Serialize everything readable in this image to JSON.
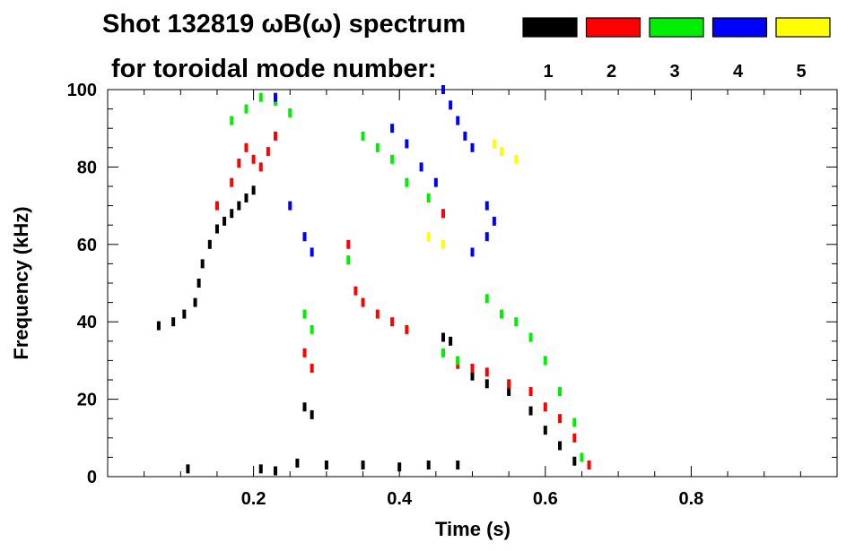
{
  "chart_data": {
    "type": "scatter",
    "title": "Shot 132819 ωB(ω) spectrum",
    "subtitle": "for toroidal mode number:",
    "xlabel": "Time (s)",
    "ylabel": "Frequency (kHz)",
    "xlim": [
      0.0,
      1.0
    ],
    "ylim": [
      0,
      100
    ],
    "x_ticks": [
      {
        "value": 0.2,
        "label": "0.2"
      },
      {
        "value": 0.4,
        "label": "0.4"
      },
      {
        "value": 0.6,
        "label": "0.6"
      },
      {
        "value": 0.8,
        "label": "0.8"
      }
    ],
    "y_ticks": [
      {
        "value": 0,
        "label": "0"
      },
      {
        "value": 20,
        "label": "20"
      },
      {
        "value": 40,
        "label": "40"
      },
      {
        "value": 60,
        "label": "60"
      },
      {
        "value": 80,
        "label": "80"
      },
      {
        "value": 100,
        "label": "100"
      }
    ],
    "legend": [
      {
        "label": "1",
        "color": "#000000"
      },
      {
        "label": "2",
        "color": "#ff0000"
      },
      {
        "label": "3",
        "color": "#00ee00"
      },
      {
        "label": "4",
        "color": "#0000ff"
      },
      {
        "label": "5",
        "color": "#ffff00"
      }
    ],
    "series": [
      {
        "name": "1",
        "color": "#000000",
        "points": [
          [
            0.07,
            39
          ],
          [
            0.09,
            40
          ],
          [
            0.105,
            42
          ],
          [
            0.12,
            45
          ],
          [
            0.125,
            50
          ],
          [
            0.13,
            55
          ],
          [
            0.14,
            60
          ],
          [
            0.15,
            64
          ],
          [
            0.16,
            66
          ],
          [
            0.17,
            68
          ],
          [
            0.18,
            70
          ],
          [
            0.19,
            72
          ],
          [
            0.2,
            74
          ],
          [
            0.27,
            18
          ],
          [
            0.28,
            16
          ],
          [
            0.46,
            36
          ],
          [
            0.47,
            35
          ],
          [
            0.5,
            26
          ],
          [
            0.52,
            24
          ],
          [
            0.55,
            22
          ],
          [
            0.58,
            17
          ],
          [
            0.6,
            12
          ],
          [
            0.62,
            8
          ],
          [
            0.64,
            4
          ],
          [
            0.21,
            2
          ],
          [
            0.3,
            3
          ],
          [
            0.4,
            2.5
          ],
          [
            0.48,
            3
          ],
          [
            0.23,
            1.5
          ],
          [
            0.26,
            3.5
          ],
          [
            0.35,
            3
          ],
          [
            0.44,
            3
          ],
          [
            0.11,
            2
          ]
        ]
      },
      {
        "name": "2",
        "color": "#ff0000",
        "points": [
          [
            0.15,
            70
          ],
          [
            0.17,
            76
          ],
          [
            0.18,
            81
          ],
          [
            0.19,
            85
          ],
          [
            0.2,
            82
          ],
          [
            0.21,
            80
          ],
          [
            0.22,
            84
          ],
          [
            0.23,
            88
          ],
          [
            0.27,
            32
          ],
          [
            0.28,
            28
          ],
          [
            0.33,
            60
          ],
          [
            0.34,
            48
          ],
          [
            0.35,
            45
          ],
          [
            0.37,
            42
          ],
          [
            0.39,
            40
          ],
          [
            0.41,
            38
          ],
          [
            0.46,
            68
          ],
          [
            0.48,
            29
          ],
          [
            0.5,
            28
          ],
          [
            0.52,
            27
          ],
          [
            0.55,
            24
          ],
          [
            0.58,
            22
          ],
          [
            0.6,
            18
          ],
          [
            0.62,
            15
          ],
          [
            0.64,
            10
          ],
          [
            0.66,
            3
          ]
        ]
      },
      {
        "name": "3",
        "color": "#00ee00",
        "points": [
          [
            0.17,
            92
          ],
          [
            0.19,
            95
          ],
          [
            0.21,
            98
          ],
          [
            0.23,
            97
          ],
          [
            0.25,
            94
          ],
          [
            0.27,
            42
          ],
          [
            0.28,
            38
          ],
          [
            0.35,
            88
          ],
          [
            0.37,
            85
          ],
          [
            0.39,
            82
          ],
          [
            0.41,
            76
          ],
          [
            0.44,
            72
          ],
          [
            0.46,
            32
          ],
          [
            0.48,
            30
          ],
          [
            0.52,
            46
          ],
          [
            0.54,
            42
          ],
          [
            0.56,
            40
          ],
          [
            0.58,
            36
          ],
          [
            0.6,
            30
          ],
          [
            0.62,
            22
          ],
          [
            0.64,
            14
          ],
          [
            0.65,
            5
          ],
          [
            0.33,
            56
          ]
        ]
      },
      {
        "name": "4",
        "color": "#0000ff",
        "points": [
          [
            0.23,
            98
          ],
          [
            0.25,
            70
          ],
          [
            0.27,
            62
          ],
          [
            0.28,
            58
          ],
          [
            0.39,
            90
          ],
          [
            0.41,
            86
          ],
          [
            0.43,
            80
          ],
          [
            0.45,
            76
          ],
          [
            0.46,
            100
          ],
          [
            0.47,
            96
          ],
          [
            0.48,
            92
          ],
          [
            0.49,
            88
          ],
          [
            0.5,
            85
          ],
          [
            0.5,
            58
          ],
          [
            0.52,
            62
          ],
          [
            0.52,
            70
          ],
          [
            0.53,
            66
          ]
        ]
      },
      {
        "name": "5",
        "color": "#ffff00",
        "points": [
          [
            0.44,
            62
          ],
          [
            0.46,
            60
          ],
          [
            0.53,
            86
          ],
          [
            0.54,
            84
          ],
          [
            0.56,
            82
          ]
        ]
      }
    ]
  }
}
